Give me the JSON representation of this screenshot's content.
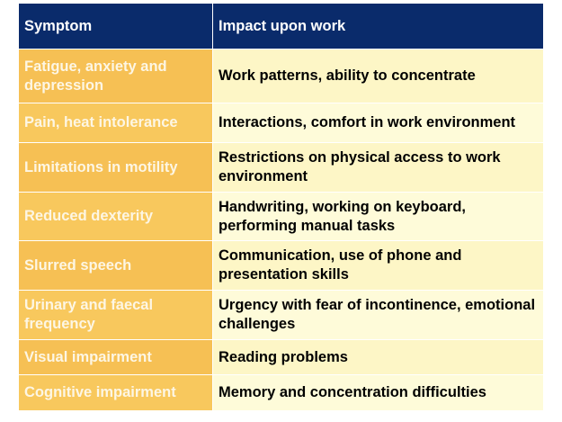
{
  "table": {
    "headers": [
      "Symptom",
      "Impact upon work"
    ],
    "rows": [
      {
        "symptom": "Fatigue, anxiety and depression",
        "impact": "Work patterns, ability to concentrate"
      },
      {
        "symptom": "Pain, heat intolerance",
        "impact": "Interactions, comfort in work environment"
      },
      {
        "symptom": "Limitations in motility",
        "impact": "Restrictions on physical access to work environment"
      },
      {
        "symptom": "Reduced dexterity",
        "impact": "Handwriting, working on keyboard, performing manual tasks"
      },
      {
        "symptom": "Slurred speech",
        "impact": "Communication, use of phone and presentation skills"
      },
      {
        "symptom": "Urinary and faecal frequency",
        "impact": "Urgency with fear of incontinence, emotional challenges"
      },
      {
        "symptom": "Visual impairment",
        "impact": "Reading problems"
      },
      {
        "symptom": "Cognitive impairment",
        "impact": "Memory and concentration difficulties"
      }
    ]
  },
  "colors": {
    "header_bg": "#0a2b6b",
    "symptom_bg": "#f6c054",
    "impact_bg": "#fdf6c6"
  }
}
